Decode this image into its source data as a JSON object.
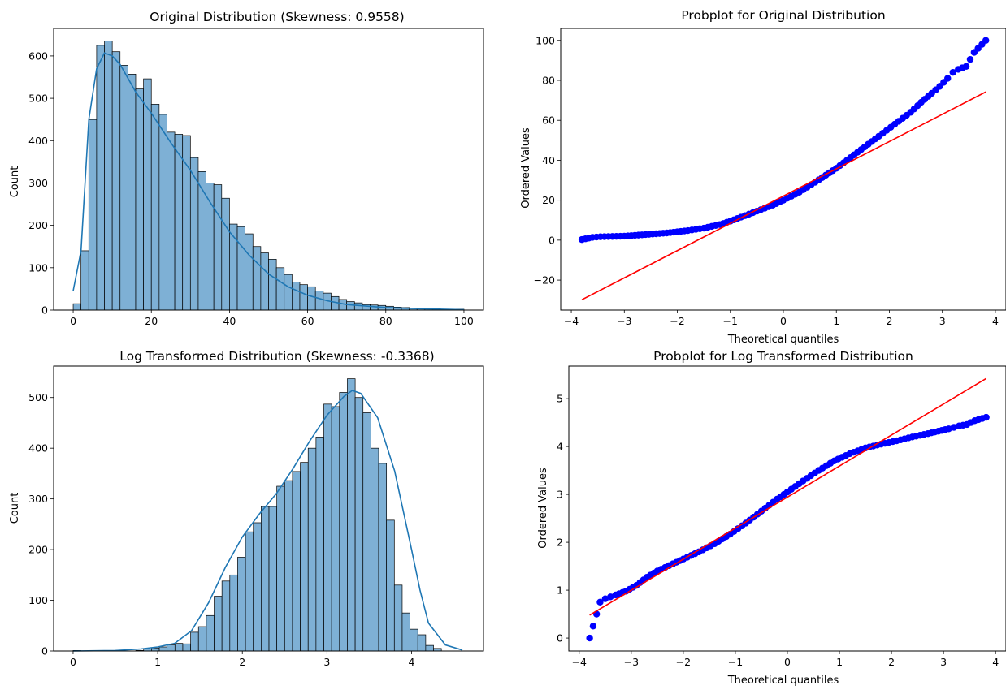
{
  "chart_data": [
    {
      "type": "bar",
      "title": "Original Distribution (Skewness: 0.9558)",
      "xlabel": "",
      "ylabel": "Count",
      "xlim": [
        -5,
        105
      ],
      "ylim": [
        0,
        665
      ],
      "xticks": [
        0,
        20,
        40,
        60,
        80,
        100
      ],
      "yticks": [
        0,
        100,
        200,
        300,
        400,
        500,
        600
      ],
      "bin_start": 0,
      "bin_width": 2,
      "values": [
        15,
        140,
        450,
        625,
        635,
        610,
        578,
        557,
        522,
        546,
        486,
        462,
        420,
        415,
        412,
        360,
        327,
        300,
        296,
        264,
        203,
        197,
        180,
        150,
        135,
        120,
        100,
        84,
        66,
        60,
        55,
        45,
        40,
        32,
        25,
        20,
        17,
        13,
        12,
        11,
        9,
        7,
        6,
        5,
        4,
        3,
        3,
        2,
        2,
        2
      ],
      "kde_x": [
        0,
        2,
        4,
        6,
        8,
        10,
        12,
        16,
        20,
        25,
        30,
        35,
        40,
        45,
        50,
        55,
        60,
        65,
        70,
        80,
        90,
        100
      ],
      "kde_y": [
        45,
        140,
        450,
        570,
        607,
        600,
        580,
        515,
        465,
        395,
        330,
        255,
        185,
        130,
        85,
        55,
        35,
        22,
        13,
        6,
        3,
        1
      ],
      "bar_color": "#7eb0d5",
      "line_color": "#1f77b4"
    },
    {
      "type": "scatter",
      "title": "Probplot for Original Distribution",
      "xlabel": "Theoretical quantiles",
      "ylabel": "Ordered Values",
      "xlim": [
        -4.2,
        4.2
      ],
      "ylim": [
        -35,
        106
      ],
      "xticks": [
        -4,
        -3,
        -2,
        -1,
        0,
        1,
        2,
        3,
        4
      ],
      "yticks": [
        -20,
        0,
        20,
        40,
        60,
        80,
        100
      ],
      "points_x": [
        -3.8,
        -3.6,
        -3.45,
        -3.3,
        -3.0,
        -2.6,
        -2.2,
        -1.8,
        -1.5,
        -1.2,
        -1.0,
        -0.8,
        -0.5,
        -0.2,
        0,
        0.3,
        0.6,
        1.0,
        1.4,
        1.8,
        2.1,
        2.4,
        2.6,
        2.8,
        2.95,
        3.1,
        3.2,
        3.3,
        3.45,
        3.6,
        3.82
      ],
      "points_y": [
        0.3,
        1.4,
        1.7,
        1.8,
        2.0,
        2.8,
        3.6,
        4.8,
        6.0,
        7.8,
        9.5,
        11.5,
        14.5,
        17.5,
        20,
        24,
        29,
        36,
        44,
        52,
        58,
        64,
        69,
        73.5,
        77,
        81,
        84,
        85.5,
        87,
        94,
        100
      ],
      "fit_line": {
        "x": [
          -3.8,
          3.82
        ],
        "y": [
          -29.8,
          74.2
        ]
      },
      "point_color": "#0000ff",
      "line_color": "#ff0000"
    },
    {
      "type": "bar",
      "title": "Log Transformed Distribution (Skewness: -0.3368)",
      "xlabel": "",
      "ylabel": "Count",
      "xlim": [
        -0.23,
        4.85
      ],
      "ylim": [
        0,
        562
      ],
      "xticks": [
        0,
        1,
        2,
        3,
        4
      ],
      "yticks": [
        0,
        100,
        200,
        300,
        400,
        500
      ],
      "bin_start": 0,
      "bin_width": 0.0926,
      "values": [
        1,
        0,
        0,
        0,
        0,
        0,
        0,
        0,
        1,
        4,
        6,
        8,
        12,
        15,
        14,
        37,
        48,
        70,
        108,
        138,
        150,
        185,
        235,
        253,
        285,
        285,
        325,
        336,
        354,
        372,
        400,
        422,
        487,
        482,
        510,
        537,
        500,
        470,
        400,
        370,
        258,
        130,
        75,
        43,
        32,
        11,
        5
      ],
      "kde_x": [
        0,
        0.5,
        0.8,
        1.0,
        1.2,
        1.4,
        1.6,
        1.8,
        2.0,
        2.2,
        2.4,
        2.6,
        2.8,
        3.0,
        3.2,
        3.3,
        3.4,
        3.6,
        3.8,
        4.0,
        4.1,
        4.2,
        4.4,
        4.6
      ],
      "kde_y": [
        0,
        1,
        4,
        8,
        15,
        40,
        95,
        165,
        225,
        270,
        310,
        360,
        415,
        465,
        502,
        514,
        508,
        460,
        355,
        200,
        120,
        55,
        12,
        2
      ],
      "bar_color": "#7eb0d5",
      "line_color": "#1f77b4"
    },
    {
      "type": "scatter",
      "title": "Probplot for Log Transformed Distribution",
      "xlabel": "Theoretical quantiles",
      "ylabel": "Ordered Values",
      "xlim": [
        -4.2,
        4.2
      ],
      "ylim": [
        -0.27,
        5.68
      ],
      "xticks": [
        -4,
        -3,
        -2,
        -1,
        0,
        1,
        2,
        3,
        4
      ],
      "yticks": [
        0,
        1,
        2,
        3,
        4,
        5
      ],
      "points_x": [
        -3.8,
        -3.6,
        -3.5,
        -3.4,
        -3.3,
        -3.1,
        -2.9,
        -2.7,
        -2.5,
        -2.2,
        -2.0,
        -1.7,
        -1.4,
        -1.1,
        -0.8,
        -0.5,
        -0.2,
        0,
        0.3,
        0.6,
        0.9,
        1.2,
        1.5,
        1.8,
        2.1,
        2.4,
        2.7,
        2.9,
        3.1,
        3.2,
        3.3,
        3.45,
        3.6,
        3.82
      ],
      "points_y": [
        0.0,
        0.75,
        0.82,
        0.86,
        0.9,
        0.98,
        1.1,
        1.27,
        1.4,
        1.55,
        1.65,
        1.8,
        1.97,
        2.17,
        2.4,
        2.65,
        2.9,
        3.05,
        3.28,
        3.5,
        3.7,
        3.85,
        3.97,
        4.05,
        4.12,
        4.2,
        4.27,
        4.32,
        4.37,
        4.4,
        4.43,
        4.46,
        4.54,
        4.61
      ],
      "fit_line": {
        "x": [
          -3.8,
          3.82
        ],
        "y": [
          0.48,
          5.42
        ]
      },
      "point_color": "#0000ff",
      "line_color": "#ff0000"
    }
  ]
}
